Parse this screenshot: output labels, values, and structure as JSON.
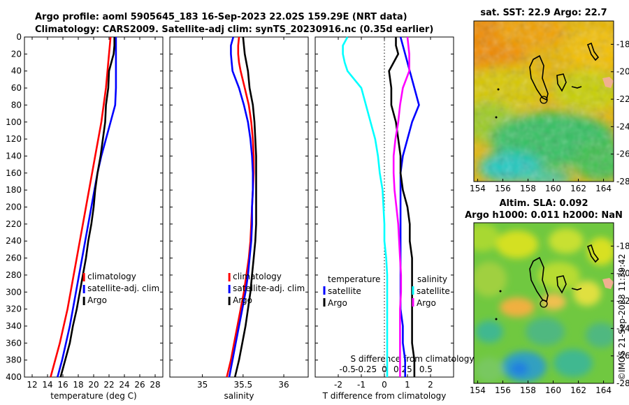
{
  "titles": {
    "line1": "Argo profile: aoml 5905645_183 16-Sep-2023 22.02S 159.29E (NRT data)",
    "line2": "Climatology: CARS2009. Satellite-adj clim: synTS_20230916.nc (0.35d earlier)",
    "sst_map": "sat. SST: 22.9 Argo: 22.7",
    "sla_map_line1": "Altim. SLA: 0.092",
    "sla_map_line2": "Argo h1000: 0.011 h2000: NaN",
    "watermark": "©IMOS 21-Sep-2023 11:39:42"
  },
  "colors": {
    "climatology": "#ff0000",
    "satellite": "#0000ff",
    "argo": "#000000",
    "temp_diff_satellite": "#0000ff",
    "temp_diff_argo": "#000000",
    "sal_diff_satellite": "#00ffff",
    "sal_diff_argo": "#ff00ff"
  },
  "chart_data": [
    {
      "type": "line",
      "title": "",
      "xlabel": "temperature (deg C)",
      "ylabel": "",
      "xlim": [
        11,
        29
      ],
      "ylim": [
        400,
        0
      ],
      "xticks": [
        12,
        14,
        16,
        18,
        20,
        22,
        24,
        26,
        28
      ],
      "yticks": [
        0,
        20,
        40,
        60,
        80,
        100,
        120,
        140,
        160,
        180,
        200,
        220,
        240,
        260,
        280,
        300,
        320,
        340,
        360,
        380,
        400
      ],
      "depth": [
        0,
        10,
        20,
        30,
        40,
        60,
        80,
        100,
        120,
        140,
        160,
        180,
        200,
        220,
        240,
        260,
        280,
        300,
        320,
        340,
        360,
        380,
        400
      ],
      "series": [
        {
          "name": "climatology",
          "color": "#ff0000",
          "values": [
            22.2,
            22.1,
            22.0,
            21.9,
            21.8,
            21.6,
            21.3,
            21.0,
            20.6,
            20.2,
            19.8,
            19.4,
            19.0,
            18.6,
            18.2,
            17.8,
            17.4,
            17.0,
            16.6,
            16.1,
            15.6,
            15.0,
            14.4
          ]
        },
        {
          "name": "satellite-adj. clim",
          "color": "#0000ff",
          "values": [
            22.9,
            22.9,
            22.9,
            22.9,
            22.9,
            22.9,
            22.8,
            22.2,
            21.6,
            21.0,
            20.5,
            20.1,
            19.7,
            19.3,
            18.9,
            18.5,
            18.1,
            17.7,
            17.3,
            16.9,
            16.4,
            15.9,
            15.3
          ]
        },
        {
          "name": "Argo",
          "color": "#000000",
          "values": [
            22.7,
            22.7,
            22.6,
            22.3,
            22.0,
            21.9,
            21.6,
            21.5,
            21.2,
            20.9,
            20.5,
            20.2,
            20.0,
            19.7,
            19.3,
            19.0,
            18.6,
            18.2,
            17.8,
            17.3,
            16.9,
            16.3,
            15.7
          ]
        }
      ],
      "legend": [
        "climatology",
        "satellite-adj. clim",
        "Argo"
      ],
      "legend_position": "lower-right"
    },
    {
      "type": "line",
      "title": "",
      "xlabel": "salinity",
      "ylabel": "",
      "xlim": [
        34.6,
        36.3
      ],
      "ylim": [
        400,
        0
      ],
      "xticks": [
        35,
        35.5,
        36
      ],
      "depth": [
        0,
        10,
        20,
        30,
        40,
        60,
        80,
        100,
        120,
        140,
        160,
        180,
        200,
        220,
        240,
        260,
        280,
        300,
        320,
        340,
        360,
        380,
        400
      ],
      "series": [
        {
          "name": "climatology",
          "color": "#ff0000",
          "values": [
            35.45,
            35.44,
            35.44,
            35.45,
            35.47,
            35.52,
            35.57,
            35.6,
            35.62,
            35.63,
            35.63,
            35.62,
            35.61,
            35.6,
            35.59,
            35.57,
            35.54,
            35.51,
            35.47,
            35.43,
            35.39,
            35.35,
            35.3
          ]
        },
        {
          "name": "satellite-adj. clim",
          "color": "#0000ff",
          "values": [
            35.38,
            35.35,
            35.35,
            35.36,
            35.37,
            35.45,
            35.51,
            35.56,
            35.59,
            35.61,
            35.62,
            35.62,
            35.61,
            35.61,
            35.6,
            35.58,
            35.56,
            35.53,
            35.49,
            35.45,
            35.41,
            35.37,
            35.33
          ]
        },
        {
          "name": "Argo",
          "color": "#000000",
          "values": [
            35.5,
            35.51,
            35.52,
            35.54,
            35.56,
            35.58,
            35.62,
            35.64,
            35.65,
            35.66,
            35.66,
            35.66,
            35.66,
            35.66,
            35.65,
            35.63,
            35.61,
            35.59,
            35.56,
            35.53,
            35.49,
            35.45,
            35.4
          ]
        }
      ],
      "legend": [
        "climatology",
        "satellite-adj. clim",
        "Argo"
      ],
      "legend_position": "lower-right"
    },
    {
      "type": "line",
      "title": "",
      "xlabel": "T difference from climatology",
      "xlabel_top": "S difference from climatology",
      "ylabel": "",
      "xlim": [
        -3,
        3
      ],
      "ylim": [
        400,
        0
      ],
      "xticks": [
        -2,
        -1,
        0,
        1,
        2
      ],
      "xticks_salinity": [
        "-0.5",
        "-0.25",
        "0",
        "0.25",
        "0.5"
      ],
      "depth": [
        0,
        10,
        20,
        30,
        40,
        60,
        80,
        100,
        120,
        140,
        160,
        180,
        200,
        220,
        240,
        260,
        280,
        300,
        320,
        340,
        360,
        380,
        400
      ],
      "series": [
        {
          "name": "temperature satellite",
          "color": "#0000ff",
          "values": [
            0.7,
            0.8,
            0.9,
            1.0,
            1.1,
            1.3,
            1.5,
            1.2,
            1.0,
            0.8,
            0.7,
            0.7,
            0.7,
            0.7,
            0.7,
            0.7,
            0.7,
            0.7,
            0.7,
            0.8,
            0.8,
            0.9,
            0.9
          ]
        },
        {
          "name": "temperature Argo",
          "color": "#000000",
          "values": [
            0.5,
            0.5,
            0.6,
            0.4,
            0.2,
            0.3,
            0.3,
            0.5,
            0.6,
            0.7,
            0.7,
            0.8,
            1.0,
            1.1,
            1.1,
            1.2,
            1.2,
            1.2,
            1.2,
            1.2,
            1.2,
            1.3,
            1.3
          ]
        },
        {
          "name": "salinity satellite",
          "color": "#00ffff",
          "values": [
            -0.4,
            -0.45,
            -0.45,
            -0.43,
            -0.4,
            -0.25,
            -0.2,
            -0.15,
            -0.1,
            -0.07,
            -0.05,
            -0.02,
            -0.01,
            0.0,
            0.0,
            0.02,
            0.03,
            0.03,
            0.03,
            0.03,
            0.03,
            0.03,
            0.03
          ]
        },
        {
          "name": "salinity Argo",
          "color": "#ff00ff",
          "values": [
            0.25,
            0.26,
            0.27,
            0.27,
            0.27,
            0.2,
            0.17,
            0.15,
            0.12,
            0.1,
            0.1,
            0.11,
            0.13,
            0.15,
            0.16,
            0.17,
            0.18,
            0.18,
            0.17,
            0.17,
            0.17,
            0.17,
            0.17
          ]
        }
      ],
      "legend_temperature": {
        "header": "temperature",
        "items": [
          "satellite",
          "Argo"
        ]
      },
      "legend_salinity": {
        "header": "salinity",
        "items": [
          "satellite",
          "Argo"
        ]
      }
    },
    {
      "type": "heatmap",
      "title": "sat. SST: 22.9 Argo: 22.7",
      "xlim": [
        153.7,
        164.8
      ],
      "ylim": [
        -28,
        -16.3
      ],
      "xticks": [
        154,
        156,
        158,
        160,
        162,
        164
      ],
      "yticks": [
        -18,
        -20,
        -22,
        -24,
        -26,
        -28
      ],
      "marker": {
        "lon": 159.29,
        "lat": -22.02
      }
    },
    {
      "type": "heatmap",
      "title": "Altim. SLA: 0.092",
      "xlim": [
        153.7,
        164.8
      ],
      "ylim": [
        -28,
        -16.3
      ],
      "xticks": [
        154,
        156,
        158,
        160,
        162,
        164
      ],
      "yticks": [
        -18,
        -20,
        -22,
        -24,
        -26,
        -28
      ],
      "marker": {
        "lon": 159.29,
        "lat": -22.02
      }
    }
  ]
}
